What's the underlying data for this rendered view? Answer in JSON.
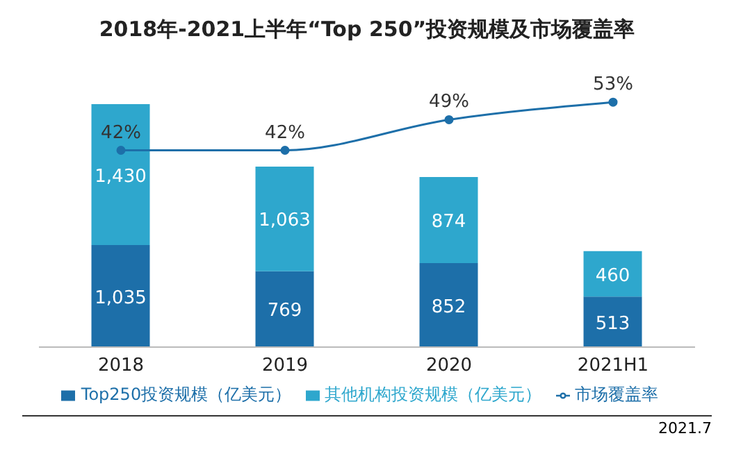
{
  "chart_data": {
    "type": "bar",
    "title": "2018年-2021上半年“Top 250”投资规模及市场覆盖率",
    "categories": [
      "2018",
      "2019",
      "2020",
      "2021H1"
    ],
    "stacked": true,
    "legend": "bottom",
    "series": [
      {
        "name": "Top250投资规模（亿美元）",
        "color": "#1d6fa9",
        "values": [
          1035,
          769,
          852,
          513
        ],
        "value_labels": [
          "1,035",
          "769",
          "852",
          "513"
        ]
      },
      {
        "name": "其他机构投资规模（亿美元）",
        "color": "#2ea7cd",
        "values": [
          1430,
          1063,
          874,
          460
        ],
        "value_labels": [
          "1,430",
          "1,063",
          "874",
          "460"
        ]
      },
      {
        "name": "市场覆盖率",
        "type": "line",
        "axis": "y2",
        "color": "#1d6fa9",
        "marker": "circle",
        "values": [
          42,
          42,
          49,
          53
        ],
        "value_labels": [
          "42%",
          "42%",
          "49%",
          "53%"
        ]
      }
    ],
    "annotations": [
      "2021.7"
    ]
  }
}
